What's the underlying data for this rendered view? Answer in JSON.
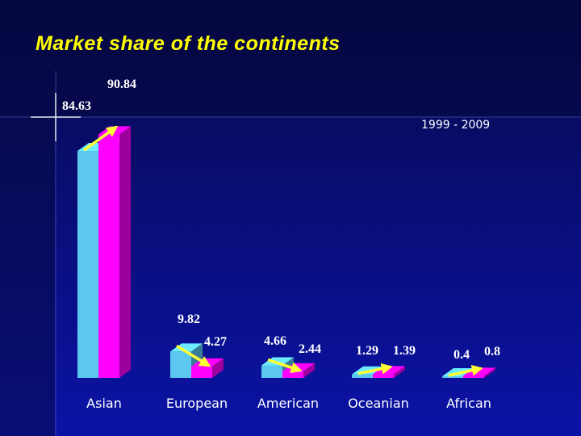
{
  "slide": {
    "title": "Market share of the continents",
    "period": "1999 - 2009"
  },
  "colors": {
    "background_top": "#0a0c3e",
    "background_main": "#0a12a0",
    "title": "#ffff00",
    "series_1999": "#5cc8f0",
    "series_2009": "#ff00ff",
    "arrow": "#ffff33",
    "text": "#ffffff"
  },
  "chart_data": {
    "type": "bar",
    "style": "3d-grouped",
    "categories": [
      "Asian",
      "European",
      "American",
      "Oceanian",
      "African"
    ],
    "series": [
      {
        "values": [
          84.63,
          9.82,
          4.66,
          1.29,
          0.4
        ]
      },
      {
        "values": [
          90.84,
          4.27,
          2.44,
          1.39,
          0.8
        ]
      }
    ],
    "value_labels": [
      [
        "84.63",
        "9.82",
        "4.66",
        "1.29",
        "0.4"
      ],
      [
        "90.84",
        "4.27",
        "2.44",
        "1.39",
        "0.8"
      ]
    ],
    "trend_arrows": true,
    "legend": "none",
    "grid": false,
    "ylim": [
      0,
      100
    ]
  }
}
